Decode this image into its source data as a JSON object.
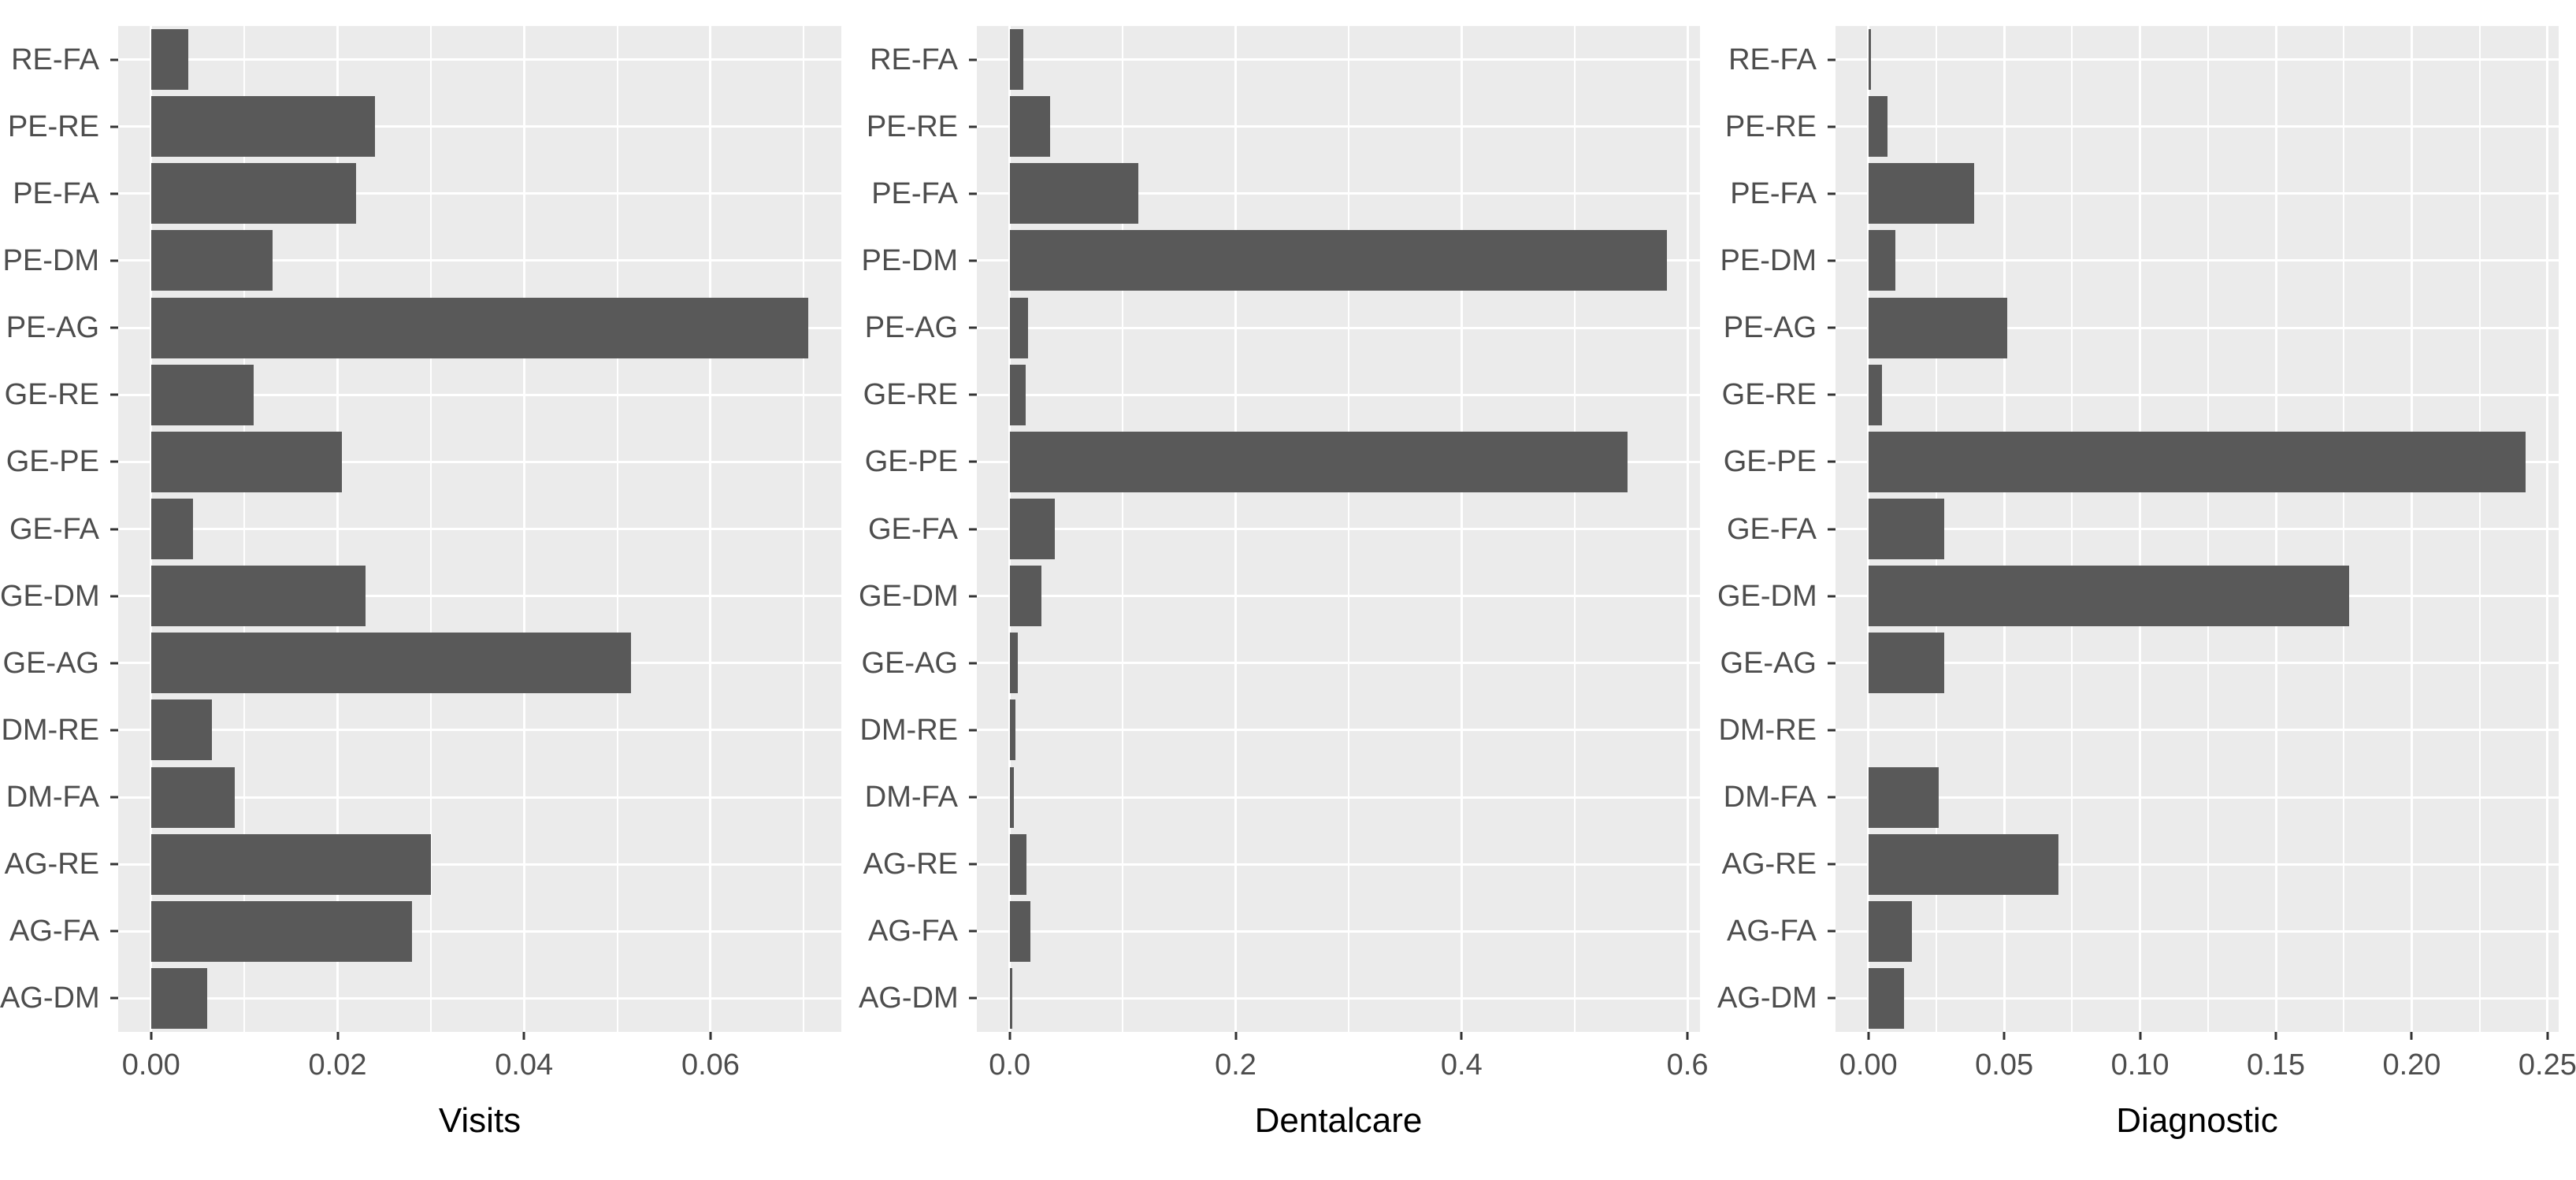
{
  "styles": {
    "bar_color": "#595959",
    "panel_bg": "#EBEBEB",
    "grid_color": "#ffffff",
    "axis_text_color": "#4D4D4D",
    "axis_title_color": "#000000",
    "tick_mark_color": "#333333",
    "figure_bg": "#ffffff"
  },
  "chart_data": [
    {
      "type": "bar",
      "orientation": "horizontal",
      "panel_name": "visits",
      "xlabel": "Visits",
      "categories": [
        "RE-FA",
        "PE-RE",
        "PE-FA",
        "PE-DM",
        "PE-AG",
        "GE-RE",
        "GE-PE",
        "GE-FA",
        "GE-DM",
        "GE-AG",
        "DM-RE",
        "DM-FA",
        "AG-RE",
        "AG-FA",
        "AG-DM"
      ],
      "values": [
        0.004,
        0.024,
        0.022,
        0.013,
        0.0705,
        0.011,
        0.0205,
        0.0045,
        0.023,
        0.0515,
        0.0065,
        0.009,
        0.03,
        0.028,
        0.006
      ],
      "xlim": [
        -0.00353,
        0.07403
      ],
      "xticks_major": [
        0.0,
        0.02,
        0.04,
        0.06
      ],
      "xtick_labels": [
        "0.00",
        "0.02",
        "0.04",
        "0.06"
      ],
      "xticks_minor": [
        0.01,
        0.03,
        0.05,
        0.07
      ],
      "grid": true,
      "legend": false
    },
    {
      "type": "bar",
      "orientation": "horizontal",
      "panel_name": "dentalcare",
      "xlabel": "Dentalcare",
      "categories": [
        "RE-FA",
        "PE-RE",
        "PE-FA",
        "PE-DM",
        "PE-AG",
        "GE-RE",
        "GE-PE",
        "GE-FA",
        "GE-DM",
        "GE-AG",
        "DM-RE",
        "DM-FA",
        "AG-RE",
        "AG-FA",
        "AG-DM"
      ],
      "values": [
        0.012,
        0.036,
        0.114,
        0.582,
        0.0165,
        0.014,
        0.547,
        0.04,
        0.028,
        0.0075,
        0.005,
        0.004,
        0.015,
        0.018,
        0.002
      ],
      "xlim": [
        -0.0291,
        0.6111
      ],
      "xticks_major": [
        0.0,
        0.2,
        0.4,
        0.6
      ],
      "xtick_labels": [
        "0.0",
        "0.2",
        "0.4",
        "0.6"
      ],
      "xticks_minor": [
        0.1,
        0.3,
        0.5
      ],
      "grid": true,
      "legend": false
    },
    {
      "type": "bar",
      "orientation": "horizontal",
      "panel_name": "diagnostic",
      "xlabel": "Diagnostic",
      "categories": [
        "RE-FA",
        "PE-RE",
        "PE-FA",
        "PE-DM",
        "PE-AG",
        "GE-RE",
        "GE-PE",
        "GE-FA",
        "GE-DM",
        "GE-AG",
        "DM-RE",
        "DM-FA",
        "AG-RE",
        "AG-FA",
        "AG-DM"
      ],
      "values": [
        0.001,
        0.007,
        0.039,
        0.01,
        0.051,
        0.005,
        0.242,
        0.028,
        0.177,
        0.028,
        0.0,
        0.026,
        0.07,
        0.016,
        0.013
      ],
      "xlim": [
        -0.0121,
        0.2541
      ],
      "xticks_major": [
        0.0,
        0.05,
        0.1,
        0.15,
        0.2,
        0.25
      ],
      "xtick_labels": [
        "0.00",
        "0.05",
        "0.10",
        "0.15",
        "0.20",
        "0.25"
      ],
      "xticks_minor": [
        0.025,
        0.075,
        0.125,
        0.175,
        0.225
      ],
      "grid": true,
      "legend": false
    }
  ]
}
